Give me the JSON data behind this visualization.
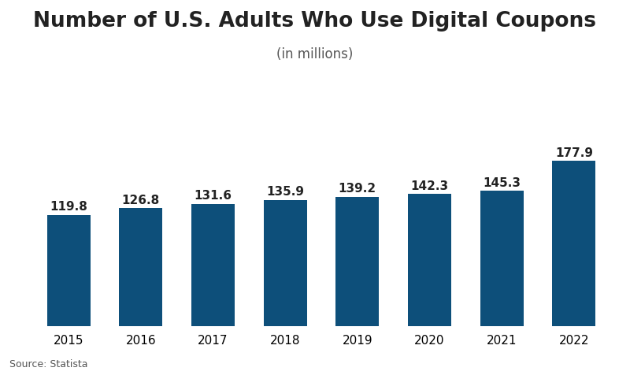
{
  "years": [
    "2015",
    "2016",
    "2017",
    "2018",
    "2019",
    "2020",
    "2021",
    "2022"
  ],
  "values": [
    119.8,
    126.8,
    131.6,
    135.9,
    139.2,
    142.3,
    145.3,
    177.9
  ],
  "bar_color": "#0d4f7a",
  "title": "Number of U.S. Adults Who Use Digital Coupons",
  "subtitle": "(in millions)",
  "source": "Source: Statista",
  "title_fontsize": 19,
  "subtitle_fontsize": 12,
  "label_fontsize": 11,
  "tick_fontsize": 11,
  "source_fontsize": 9,
  "bar_width": 0.6,
  "ylim": [
    0,
    270
  ],
  "background_color": "#ffffff",
  "label_color": "#222222",
  "subtitle_color": "#555555"
}
